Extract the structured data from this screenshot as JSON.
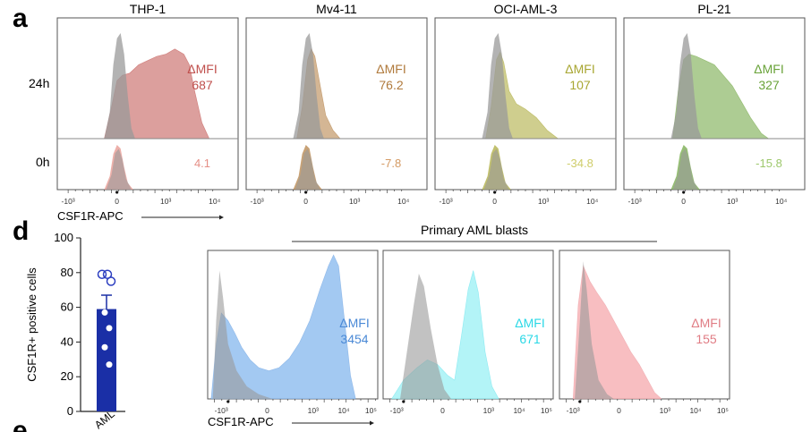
{
  "panel_letters": {
    "a": "a",
    "d": "d",
    "e": "e"
  },
  "row_labels": {
    "r24": "24h",
    "r0": "0h"
  },
  "primary_title": "Primary AML blasts",
  "axis_label": "CSF1R-APC",
  "delta_label": "ΔMFI",
  "flow_ticks": [
    "-10³",
    "0",
    "10³",
    "10⁴"
  ],
  "flow_ticks_b": [
    "-10³",
    "0",
    "10³",
    "10⁴",
    "10⁵"
  ],
  "colors": {
    "gray": "#9a9a9a",
    "thp1": "#c0504d",
    "thp1_light": "#e58f86",
    "mv411": "#b07a3c",
    "mv411_light": "#d49a63",
    "oci": "#a8a632",
    "oci_light": "#cfcd6a",
    "pl21": "#6aa33a",
    "pl21_light": "#9dc86c",
    "blue": "#4a89d6",
    "blue_fill": "#93bff0",
    "cyan": "#2ad8e6",
    "cyan_fill": "#a6f2f6",
    "pink": "#e07c84",
    "pink_fill": "#f7b3b6",
    "bar": "#1a2fa6"
  },
  "chart_data": [
    {
      "type": "area",
      "panel": "a",
      "description_axis": "CSF1R-APC",
      "cell_lines": [
        {
          "name": "THP-1",
          "dmfi_24h": "687",
          "dmfi_0h": "4.1"
        },
        {
          "name": "Mv4-11",
          "dmfi_24h": "76.2",
          "dmfi_0h": "-7.8"
        },
        {
          "name": "OCI-AML-3",
          "dmfi_24h": "107",
          "dmfi_0h": "-34.8"
        },
        {
          "name": "PL-21",
          "dmfi_24h": "327",
          "dmfi_0h": "-15.8"
        }
      ]
    },
    {
      "type": "bar",
      "panel": "d",
      "ylabel": "CSF1R+ positive cells",
      "yticks": [
        "100",
        "80",
        "60",
        "40",
        "20",
        "0"
      ],
      "ylim": [
        0,
        100
      ],
      "xlabel": "AML",
      "bar_mean": 59,
      "error": 8,
      "points_open": [
        79,
        75,
        79
      ],
      "points_filled": [
        57,
        48,
        37,
        27
      ]
    },
    {
      "type": "area",
      "panel": "primary",
      "samples": [
        {
          "dmfi": "3454"
        },
        {
          "dmfi": "671"
        },
        {
          "dmfi": "155"
        }
      ]
    }
  ]
}
